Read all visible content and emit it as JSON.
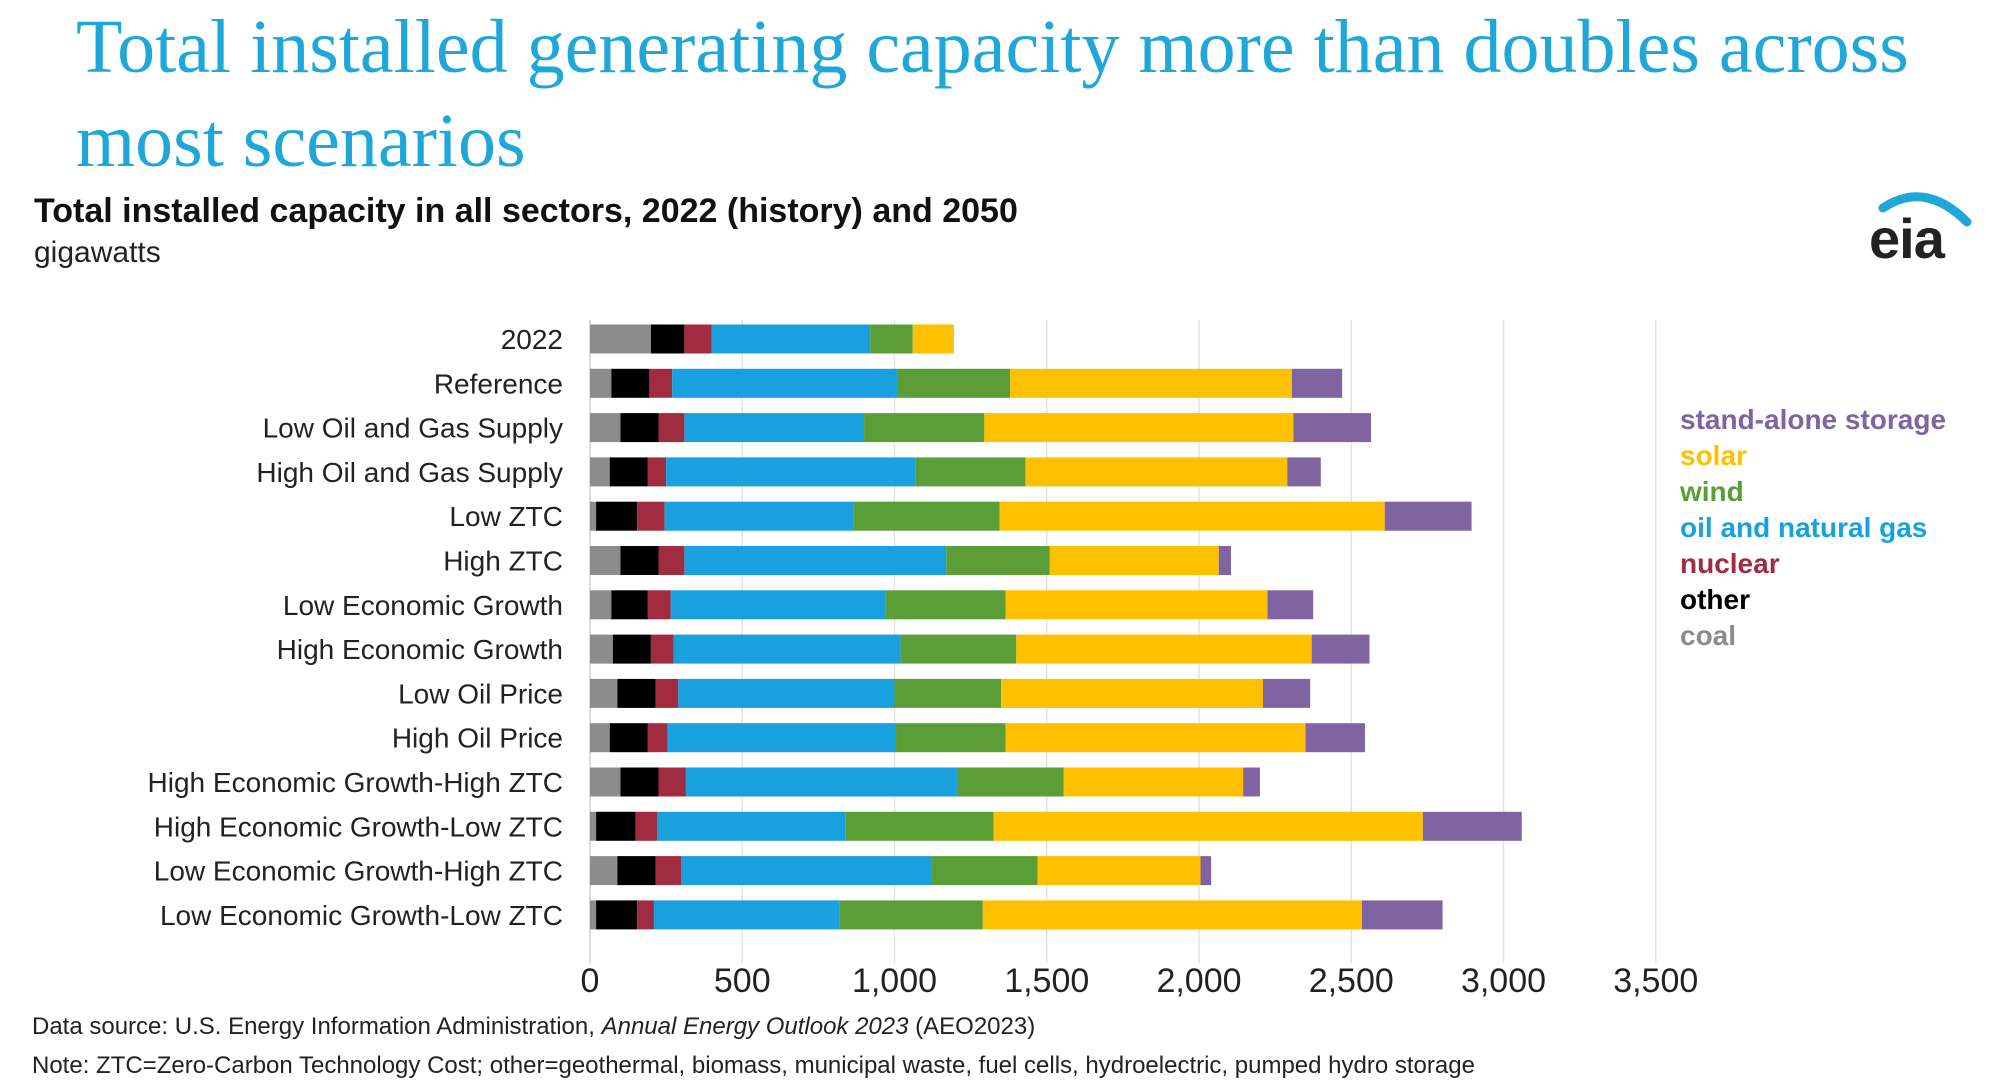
{
  "headline": "Total installed generating capacity more than doubles across most scenarios",
  "subtitle": "Total installed capacity in all sectors, 2022 (history) and 2050",
  "units": "gigawatts",
  "logo": {
    "text": "eia",
    "color": "#1fa7d9"
  },
  "source": {
    "prefix": "Data source: U.S. Energy Information Administration, ",
    "title": "Annual Energy Outlook 2023",
    "suffix": " (AEO2023)"
  },
  "note": "Note: ZTC=Zero-Carbon Technology Cost; other=geothermal, biomass, municipal waste, fuel cells, hydroelectric, pumped hydro storage",
  "legend_items": [
    {
      "label": "stand-alone storage",
      "color": "#8064a2"
    },
    {
      "label": "solar",
      "color": "#ffc000"
    },
    {
      "label": "wind",
      "color": "#5b9e38"
    },
    {
      "label": "oil and natural gas",
      "color": "#19a0de"
    },
    {
      "label": "nuclear",
      "color": "#a12c3f"
    },
    {
      "label": "other",
      "color": "#000000"
    },
    {
      "label": "coal",
      "color": "#8c8c8c"
    }
  ],
  "chart_data": {
    "type": "bar",
    "orientation": "horizontal",
    "stacked": true,
    "title": "Total installed capacity in all sectors, 2022 (history) and 2050",
    "xlabel": "gigawatts",
    "xlim": [
      0,
      3500
    ],
    "xticks": [
      0,
      500,
      1000,
      1500,
      2000,
      2500,
      3000,
      3500
    ],
    "xtick_labels": [
      "0",
      "500",
      "1,000",
      "1,500",
      "2,000",
      "2,500",
      "3,000",
      "3,500"
    ],
    "grid": "vertical",
    "legend_position": "right",
    "categories": [
      "2022",
      "Reference",
      "Low Oil and Gas Supply",
      "High Oil and Gas Supply",
      "Low ZTC",
      "High ZTC",
      "Low Economic Growth",
      "High Economic Growth",
      "Low Oil Price",
      "High Oil Price",
      "High Economic Growth-High ZTC",
      "High Economic Growth-Low ZTC",
      "Low Economic Growth-High ZTC",
      "Low Economic Growth-Low ZTC"
    ],
    "series": [
      {
        "name": "coal",
        "color": "#8c8c8c",
        "values": [
          200,
          70,
          100,
          65,
          20,
          100,
          70,
          75,
          90,
          65,
          100,
          20,
          90,
          20
        ]
      },
      {
        "name": "other",
        "color": "#000000",
        "values": [
          110,
          125,
          125,
          125,
          135,
          125,
          120,
          125,
          125,
          125,
          125,
          130,
          125,
          135
        ]
      },
      {
        "name": "nuclear",
        "color": "#a12c3f",
        "values": [
          90,
          75,
          85,
          60,
          90,
          85,
          75,
          75,
          75,
          65,
          90,
          70,
          85,
          55
        ]
      },
      {
        "name": "oil and natural gas",
        "color": "#19a0de",
        "values": [
          520,
          740,
          590,
          820,
          620,
          860,
          705,
          745,
          710,
          750,
          890,
          620,
          820,
          610
        ]
      },
      {
        "name": "wind",
        "color": "#5b9e38",
        "values": [
          140,
          370,
          395,
          360,
          480,
          340,
          395,
          380,
          350,
          360,
          350,
          485,
          350,
          470
        ]
      },
      {
        "name": "solar",
        "color": "#ffc000",
        "values": [
          135,
          925,
          1015,
          860,
          1265,
          555,
          860,
          970,
          860,
          985,
          590,
          1410,
          535,
          1245
        ]
      },
      {
        "name": "stand-alone storage",
        "color": "#8064a2",
        "values": [
          0,
          165,
          255,
          110,
          285,
          40,
          150,
          190,
          155,
          195,
          55,
          325,
          35,
          265
        ]
      }
    ]
  }
}
